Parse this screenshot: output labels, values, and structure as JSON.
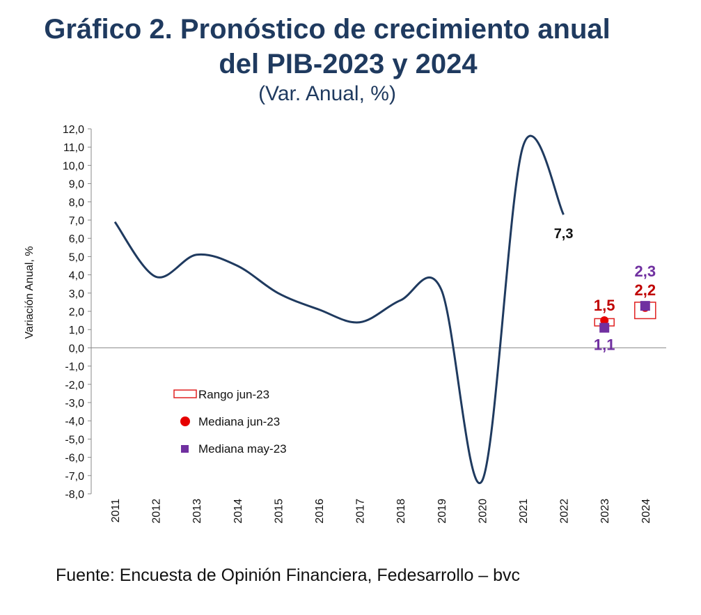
{
  "chart_data": {
    "type": "line",
    "title": "Gráfico 2. Pronóstico de crecimiento anual",
    "title_line2": "del PIB-2023 y 2024",
    "subtitle": "(Var. Anual, %)",
    "ylabel": "Variación Anual, %",
    "xlabel": "",
    "ylim": [
      -8,
      12
    ],
    "yticks": [
      "12,0",
      "11,0",
      "10,0",
      "9,0",
      "8,0",
      "7,0",
      "6,0",
      "5,0",
      "4,0",
      "3,0",
      "2,0",
      "1,0",
      "0,0",
      "-1,0",
      "-2,0",
      "-3,0",
      "-4,0",
      "-5,0",
      "-6,0",
      "-7,0",
      "-8,0"
    ],
    "categories": [
      "2011",
      "2012",
      "2013",
      "2014",
      "2015",
      "2016",
      "2017",
      "2018",
      "2019",
      "2020",
      "2021",
      "2022",
      "2023",
      "2024"
    ],
    "grid": false,
    "legend_position": "bottom-left",
    "series": [
      {
        "type": "line",
        "color": "#1f3a5f",
        "values": [
          6.9,
          3.9,
          5.1,
          4.5,
          3.0,
          2.1,
          1.4,
          2.6,
          3.2,
          -7.3,
          11.0,
          7.3,
          null,
          null
        ],
        "end_label": "7,3"
      },
      {
        "name": "Rango jun-23",
        "type": "range",
        "color": "#e02020",
        "ranges": [
          null,
          null,
          null,
          null,
          null,
          null,
          null,
          null,
          null,
          null,
          null,
          null,
          [
            1.2,
            1.6
          ],
          [
            1.6,
            2.5
          ]
        ]
      },
      {
        "name": "Mediana jun-23",
        "type": "point-circle",
        "color": "#e60000",
        "label_color": "#c00000",
        "values": [
          null,
          null,
          null,
          null,
          null,
          null,
          null,
          null,
          null,
          null,
          null,
          null,
          1.5,
          2.2
        ],
        "labels": [
          "1,5",
          "2,2"
        ]
      },
      {
        "name": "Mediana may-23",
        "type": "point-square",
        "color": "#7030a0",
        "values": [
          null,
          null,
          null,
          null,
          null,
          null,
          null,
          null,
          null,
          null,
          null,
          null,
          1.1,
          2.3
        ],
        "labels": [
          "1,1",
          "2,3"
        ]
      }
    ]
  },
  "source": "Fuente: Encuesta de Opinión Financiera, Fedesarrollo – bvc"
}
